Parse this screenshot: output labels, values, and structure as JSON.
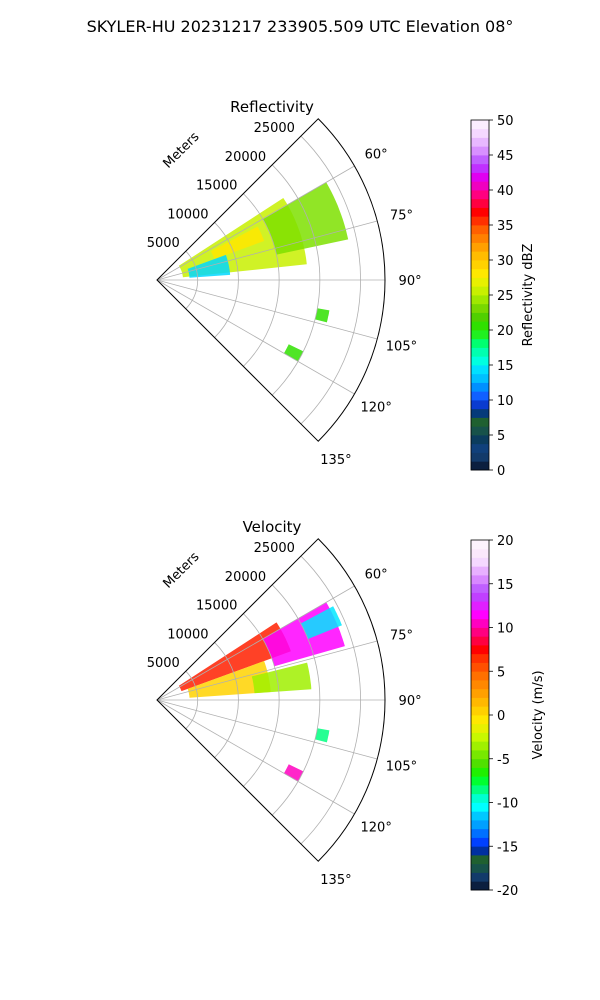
{
  "figure": {
    "title": "SKYLER-HU  20231217  233905.509 UTC Elevation 08°"
  },
  "chart_data": [
    {
      "type": "polar-sector",
      "title": "Reflectivity",
      "radial_unit_label": "Meters",
      "radial_ticks": [
        "5000",
        "10000",
        "15000",
        "20000",
        "25000"
      ],
      "azimuth_ticks": [
        "60°",
        "75°",
        "90°",
        "105°",
        "120°",
        "135°"
      ],
      "grid": true,
      "azimuth_range_deg": [
        45,
        135
      ],
      "range_max_m": 28000,
      "colorbar": {
        "label": "Reflectivity dBZ",
        "range": [
          0,
          50
        ],
        "ticks": [
          "0",
          "5",
          "10",
          "15",
          "20",
          "25",
          "30",
          "35",
          "40",
          "45",
          "50"
        ],
        "colors": [
          "#0b1f3f",
          "#123a6a",
          "#10407b",
          "#0b3c5d",
          "#17524a",
          "#1f6030",
          "#053a7a",
          "#0a3bd0",
          "#1060ff",
          "#0090ff",
          "#00c0ff",
          "#00e0ff",
          "#00ffe0",
          "#00ffb0",
          "#00ff70",
          "#20f020",
          "#30e000",
          "#50d000",
          "#78d800",
          "#a0e800",
          "#c8f000",
          "#e8f000",
          "#ffe800",
          "#ffd200",
          "#ffbc00",
          "#ffa000",
          "#ff8000",
          "#ff6000",
          "#ff3000",
          "#ff0000",
          "#ff0040",
          "#ff0080",
          "#f000c0",
          "#e000f0",
          "#c030ff",
          "#c060ff",
          "#d890ff",
          "#e8b8ff",
          "#f5d8ff",
          "#fbeefe"
        ]
      },
      "echo_areas": [
        {
          "az_from": 57,
          "az_to": 84,
          "r_from": 3200,
          "r_to": 18500,
          "color": "#c8f000"
        },
        {
          "az_from": 60,
          "az_to": 78,
          "r_from": 15000,
          "r_to": 24000,
          "color": "#7ee000"
        },
        {
          "az_from": 62,
          "az_to": 70,
          "r_from": 7500,
          "r_to": 14000,
          "color": "#ffe800"
        },
        {
          "az_from": 70,
          "az_to": 86,
          "r_from": 4000,
          "r_to": 9000,
          "color": "#00d8ff"
        },
        {
          "az_from": 100,
          "az_to": 104,
          "r_from": 20000,
          "r_to": 21500,
          "color": "#30e000"
        },
        {
          "az_from": 116,
          "az_to": 120,
          "r_from": 18000,
          "r_to": 20000,
          "color": "#30e000"
        }
      ]
    },
    {
      "type": "polar-sector",
      "title": "Velocity",
      "radial_unit_label": "Meters",
      "radial_ticks": [
        "5000",
        "10000",
        "15000",
        "20000",
        "25000"
      ],
      "azimuth_ticks": [
        "60°",
        "75°",
        "90°",
        "105°",
        "120°",
        "135°"
      ],
      "grid": true,
      "azimuth_range_deg": [
        45,
        135
      ],
      "range_max_m": 28000,
      "colorbar": {
        "label": "Velocity (m/s)",
        "range": [
          -20,
          20
        ],
        "ticks": [
          "-20",
          "-15",
          "-10",
          "-5",
          "0",
          "5",
          "10",
          "15",
          "20"
        ],
        "colors": [
          "#0b1f3f",
          "#123a6a",
          "#17524a",
          "#1f6030",
          "#0030a0",
          "#0040ff",
          "#0070ff",
          "#00a0ff",
          "#00c8ff",
          "#00ffff",
          "#00ffd0",
          "#00ff80",
          "#00ff30",
          "#20f000",
          "#50e000",
          "#78e800",
          "#a0f000",
          "#c8f800",
          "#e8f000",
          "#ffe800",
          "#ffd000",
          "#ffb800",
          "#ffa000",
          "#ff8800",
          "#ff7000",
          "#ff5000",
          "#ff3000",
          "#ff0000",
          "#ff0040",
          "#ff0080",
          "#ff00c0",
          "#ff00ff",
          "#e020ff",
          "#c040ff",
          "#c060ff",
          "#d888ff",
          "#e8b0ff",
          "#f5d8ff",
          "#fbe8fb",
          "#fdf2fd"
        ]
      },
      "echo_areas": [
        {
          "az_from": 57,
          "az_to": 70,
          "r_from": 3200,
          "r_to": 17500,
          "color": "#ff2000"
        },
        {
          "az_from": 60,
          "az_to": 74,
          "r_from": 15000,
          "r_to": 24000,
          "color": "#ff00ff"
        },
        {
          "az_from": 70,
          "az_to": 86,
          "r_from": 4000,
          "r_to": 14000,
          "color": "#ffd200"
        },
        {
          "az_from": 76,
          "az_to": 86,
          "r_from": 12000,
          "r_to": 19000,
          "color": "#a0f000"
        },
        {
          "az_from": 62,
          "az_to": 68,
          "r_from": 20000,
          "r_to": 24500,
          "color": "#00e8ff"
        },
        {
          "az_from": 100,
          "az_to": 104,
          "r_from": 20000,
          "r_to": 21500,
          "color": "#00ff80"
        },
        {
          "az_from": 116,
          "az_to": 120,
          "r_from": 18000,
          "r_to": 20000,
          "color": "#ff00c0"
        }
      ]
    }
  ]
}
